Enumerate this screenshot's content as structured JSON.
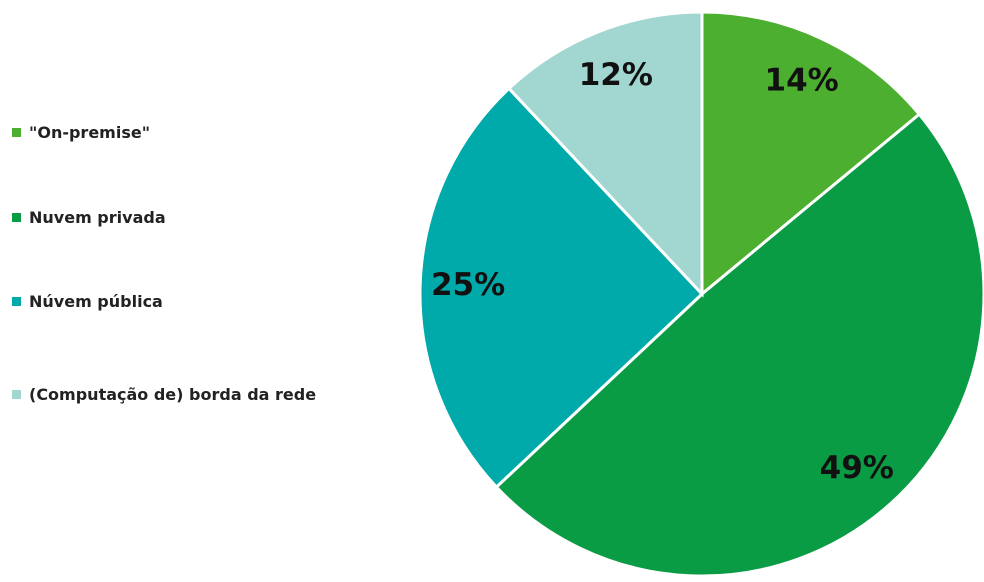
{
  "chart_data": {
    "type": "pie",
    "categories": [
      "\"On-premise\"",
      "Nuvem privada",
      "Núvem pública",
      "(Computação de) borda da rede"
    ],
    "values": [
      14,
      49,
      25,
      12
    ],
    "value_labels": [
      "14%",
      "49%",
      "25%",
      "12%"
    ],
    "colors": [
      "#4caf2f",
      "#0a9b45",
      "#00aaaa",
      "#a2d6d1"
    ],
    "legend": "left"
  }
}
